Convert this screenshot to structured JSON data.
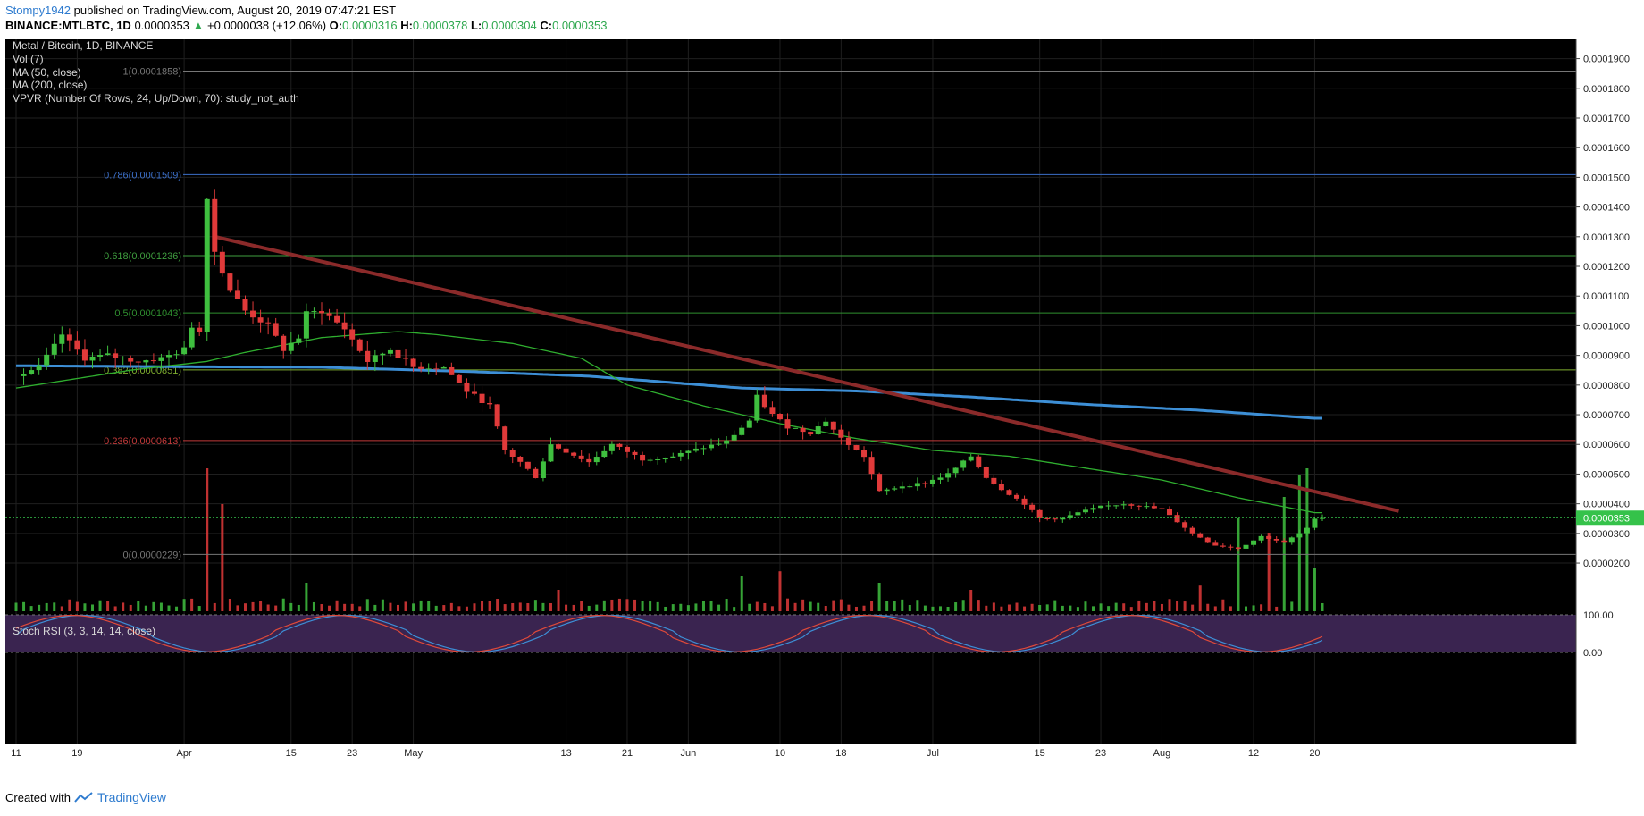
{
  "header": {
    "author": "Stompy1942",
    "published": "published on TradingView.com, August 20, 2019 07:47:21 EST",
    "symbol": "BINANCE:MTLBTC, 1D",
    "last": "0.0000353",
    "change": "+0.0000038 (+12.06%)",
    "o_label": "O:",
    "o": "0.0000316",
    "h_label": "H:",
    "h": "0.0000378",
    "l_label": "L:",
    "l": "0.0000304",
    "c_label": "C:",
    "c": "0.0000353"
  },
  "legend": {
    "title": "Metal / Bitcoin, 1D, BINANCE",
    "vol": "Vol (7)",
    "ma50": "MA (50, close)",
    "ma200": "MA (200, close)",
    "vpvr": "VPVR (Number Of Rows, 24, Up/Down, 70): study_not_auth",
    "stoch": "Stoch RSI (3, 3, 14, 14, close)"
  },
  "footer": {
    "created_with": "Created with",
    "brand": "TradingView"
  },
  "colors": {
    "background": "#000000",
    "up": "#3fbf3f",
    "down": "#e03a3a",
    "ma200": "#3d8fd6",
    "ma50": "#2fae2f",
    "trendline": "#8b2a2a",
    "fib_0786": "#3b6fc9",
    "fib_0618": "#3f9f3f",
    "fib_05": "#2f8f2f",
    "fib_0382": "#7fae2f",
    "fib_0236": "#c23a3a",
    "fib_0": "#777777",
    "price_tag": "#35c24a",
    "stoch_k": "#3d8fd6",
    "stoch_d": "#e04a3a",
    "stoch_band": "#3a2450"
  },
  "chart_data": {
    "type": "candlestick",
    "x_tick_labels": [
      "11",
      "19",
      "Apr",
      "15",
      "23",
      "May",
      "13",
      "21",
      "Jun",
      "10",
      "18",
      "Jul",
      "15",
      "23",
      "Aug",
      "12",
      "20"
    ],
    "y_axis_labels": [
      "0.0001900",
      "0.0001800",
      "0.0001700",
      "0.0001600",
      "0.0001500",
      "0.0001400",
      "0.0001300",
      "0.0001200",
      "0.0001100",
      "0.0001000",
      "0.0000900",
      "0.0000800",
      "0.0000700",
      "0.0000600",
      "0.0000500",
      "0.0000400",
      "0.0000300",
      "0.0000200"
    ],
    "y_axis_values": [
      0.00019,
      0.00018,
      0.00017,
      0.00016,
      0.00015,
      0.00014,
      0.00013,
      0.00012,
      0.00011,
      0.0001,
      9e-05,
      8e-05,
      7e-05,
      6e-05,
      5e-05,
      4e-05,
      3e-05,
      2e-05
    ],
    "ylim": [
      1.58e-05,
      0.0001965
    ],
    "current_price": 3.53e-05,
    "current_price_label": "0.0000353",
    "fib_levels": [
      {
        "label": "1(0.0001858)",
        "value": 0.0001858,
        "color_key": "fib_0"
      },
      {
        "label": "0.786(0.0001509)",
        "value": 0.0001509,
        "color_key": "fib_0786"
      },
      {
        "label": "0.618(0.0001236)",
        "value": 0.0001236,
        "color_key": "fib_0618"
      },
      {
        "label": "0.5(0.0001043)",
        "value": 0.0001043,
        "color_key": "fib_05"
      },
      {
        "label": "0.382(0.0000851)",
        "value": 8.51e-05,
        "color_key": "fib_0382"
      },
      {
        "label": "0.236(0.0000613)",
        "value": 6.13e-05,
        "color_key": "fib_0236"
      },
      {
        "label": "0(0.0000229)",
        "value": 2.29e-05,
        "color_key": "fib_0"
      }
    ],
    "trendline": {
      "start_day": 26,
      "start_price": 0.00013,
      "end_day": 171,
      "end_price": 4.35e-05
    },
    "candle_keypoints": [
      [
        0,
        8.3e-05
      ],
      [
        3,
        8.6e-05
      ],
      [
        5,
        9.3e-05
      ],
      [
        6,
        9.7e-05
      ],
      [
        9,
        8.9e-05
      ],
      [
        12,
        9e-05
      ],
      [
        16,
        8.8e-05
      ],
      [
        19,
        8.9e-05
      ],
      [
        22,
        9.2e-05
      ],
      [
        23,
        0.0001
      ],
      [
        24,
        9.8e-05
      ],
      [
        25,
        0.000144
      ],
      [
        26,
        0.000125
      ],
      [
        28,
        0.000112
      ],
      [
        30,
        0.000105
      ],
      [
        33,
        0.0001
      ],
      [
        35,
        9.2e-05
      ],
      [
        37,
        9.6e-05
      ],
      [
        38,
        0.000104
      ],
      [
        40,
        0.000105
      ],
      [
        43,
        9.9e-05
      ],
      [
        46,
        8.8e-05
      ],
      [
        49,
        9.2e-05
      ],
      [
        52,
        8.6e-05
      ],
      [
        56,
        8.6e-05
      ],
      [
        59,
        7.8e-05
      ],
      [
        62,
        7.3e-05
      ],
      [
        64,
        5.8e-05
      ],
      [
        66,
        5.4e-05
      ],
      [
        68,
        4.9e-05
      ],
      [
        70,
        6e-05
      ],
      [
        75,
        5.4e-05
      ],
      [
        78,
        6e-05
      ],
      [
        82,
        5.5e-05
      ],
      [
        86,
        5.6e-05
      ],
      [
        90,
        5.9e-05
      ],
      [
        93,
        6.1e-05
      ],
      [
        96,
        6.8e-05
      ],
      [
        97,
        7.6e-05
      ],
      [
        99,
        7e-05
      ],
      [
        101,
        6.6e-05
      ],
      [
        104,
        6.4e-05
      ],
      [
        106,
        6.8e-05
      ],
      [
        108,
        6.2e-05
      ],
      [
        111,
        5.6e-05
      ],
      [
        113,
        4.4e-05
      ],
      [
        116,
        4.6e-05
      ],
      [
        119,
        4.7e-05
      ],
      [
        122,
        5e-05
      ],
      [
        125,
        5.6e-05
      ],
      [
        127,
        4.9e-05
      ],
      [
        129,
        4.5e-05
      ],
      [
        132,
        4e-05
      ],
      [
        134,
        3.5e-05
      ],
      [
        137,
        3.5e-05
      ],
      [
        139,
        3.7e-05
      ],
      [
        142,
        3.9e-05
      ],
      [
        145,
        4e-05
      ],
      [
        148,
        3.9e-05
      ],
      [
        150,
        3.8e-05
      ],
      [
        152,
        3.4e-05
      ],
      [
        154,
        3e-05
      ],
      [
        157,
        2.6e-05
      ],
      [
        160,
        2.5e-05
      ],
      [
        163,
        2.9e-05
      ],
      [
        166,
        2.7e-05
      ],
      [
        168,
        3e-05
      ],
      [
        169,
        3.16e-05
      ],
      [
        170,
        3.53e-05
      ]
    ],
    "ma50_keypoints": [
      [
        0,
        7.9e-05
      ],
      [
        15,
        8.5e-05
      ],
      [
        25,
        8.8e-05
      ],
      [
        30,
        9.1e-05
      ],
      [
        40,
        9.6e-05
      ],
      [
        50,
        9.8e-05
      ],
      [
        55,
        9.7e-05
      ],
      [
        65,
        9.4e-05
      ],
      [
        74,
        8.9e-05
      ],
      [
        80,
        8e-05
      ],
      [
        90,
        7.3e-05
      ],
      [
        100,
        6.7e-05
      ],
      [
        110,
        6.2e-05
      ],
      [
        120,
        5.8e-05
      ],
      [
        130,
        5.6e-05
      ],
      [
        140,
        5.2e-05
      ],
      [
        150,
        4.8e-05
      ],
      [
        160,
        4.2e-05
      ],
      [
        170,
        3.7e-05
      ]
    ],
    "ma200_keypoints": [
      [
        0,
        8.65e-05
      ],
      [
        20,
        8.62e-05
      ],
      [
        40,
        8.6e-05
      ],
      [
        60,
        8.45e-05
      ],
      [
        75,
        8.3e-05
      ],
      [
        85,
        8.1e-05
      ],
      [
        95,
        7.9e-05
      ],
      [
        110,
        7.8e-05
      ],
      [
        125,
        7.6e-05
      ],
      [
        140,
        7.35e-05
      ],
      [
        155,
        7.15e-05
      ],
      [
        170,
        6.88e-05
      ]
    ],
    "total_days": 171,
    "x_tick_days": [
      0,
      8,
      22,
      36,
      44,
      52,
      72,
      80,
      88,
      100,
      108,
      120,
      134,
      142,
      150,
      162,
      170
    ],
    "volume_spike_days": [
      [
        25,
        1.0
      ],
      [
        27,
        0.75
      ],
      [
        38,
        0.2
      ],
      [
        71,
        0.15
      ],
      [
        95,
        0.25
      ],
      [
        100,
        0.28
      ],
      [
        113,
        0.2
      ],
      [
        125,
        0.15
      ],
      [
        155,
        0.18
      ],
      [
        160,
        0.65
      ],
      [
        164,
        0.55
      ],
      [
        166,
        0.8
      ],
      [
        168,
        0.95
      ],
      [
        169,
        1.0
      ],
      [
        170,
        0.3
      ]
    ],
    "stoch_labels": [
      "100.00",
      "0.00"
    ],
    "stoch_values": [
      100,
      0
    ]
  }
}
